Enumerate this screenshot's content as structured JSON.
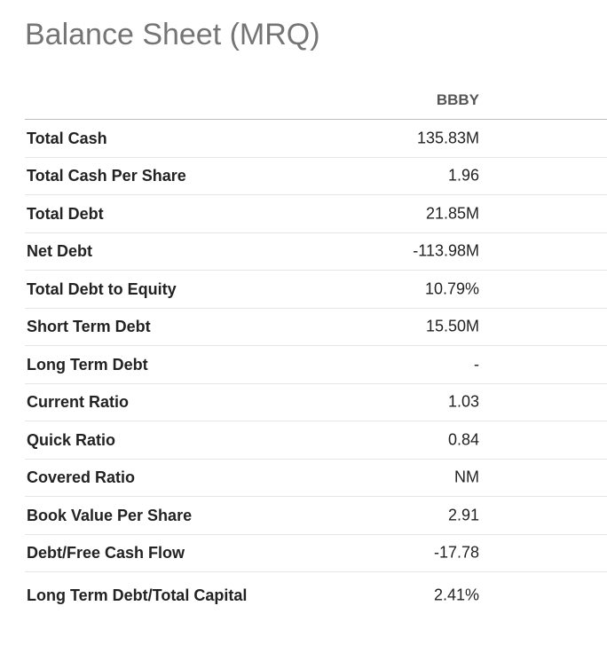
{
  "page": {
    "title": "Balance Sheet (MRQ)"
  },
  "table": {
    "column_header": "BBBY",
    "rows": [
      {
        "label": "Total Cash",
        "value": "135.83M"
      },
      {
        "label": "Total Cash Per Share",
        "value": "1.96"
      },
      {
        "label": "Total Debt",
        "value": "21.85M"
      },
      {
        "label": "Net Debt",
        "value": "-113.98M"
      },
      {
        "label": "Total Debt to Equity",
        "value": "10.79%"
      },
      {
        "label": "Short Term Debt",
        "value": "15.50M"
      },
      {
        "label": "Long Term Debt",
        "value": "-"
      },
      {
        "label": "Current Ratio",
        "value": "1.03"
      },
      {
        "label": "Quick Ratio",
        "value": "0.84"
      },
      {
        "label": "Covered Ratio",
        "value": "NM"
      },
      {
        "label": "Book Value Per Share",
        "value": "2.91"
      },
      {
        "label": "Debt/Free Cash Flow",
        "value": "-17.78"
      },
      {
        "label": "Long Term Debt/Total Capital",
        "value": "2.41%"
      }
    ]
  }
}
